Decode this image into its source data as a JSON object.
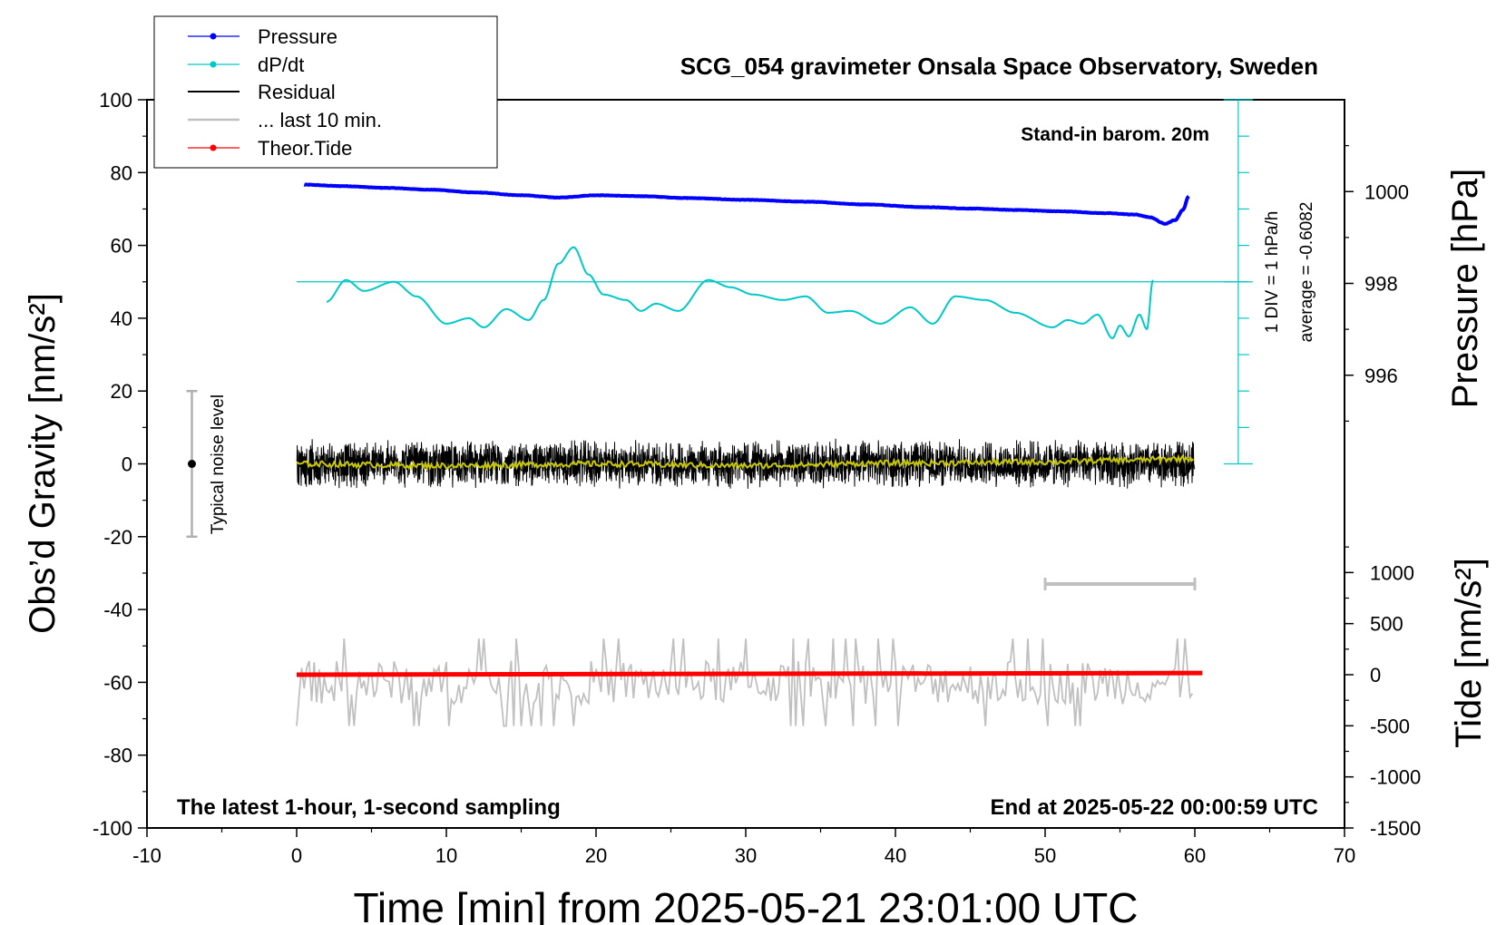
{
  "chart_data": {
    "type": "line",
    "title": "SCG_054 gravimeter Onsala Space Observatory, Sweden",
    "xlabel": "Time [min] from 2025-05-21 23:01:00 UTC",
    "ylabel_left": "Obs’d Gravity [nm/s²]",
    "ylabel_right_top": "Pressure [hPa]",
    "ylabel_right_bottom": "Tide [nm/s²]",
    "xlim": [
      -10,
      70
    ],
    "ylim": [
      -100,
      100
    ],
    "pressure_ylim": [
      994,
      1002
    ],
    "tide_ylim": [
      -1500,
      1500
    ],
    "x_ticks": [
      "-10",
      "0",
      "10",
      "20",
      "30",
      "40",
      "50",
      "60",
      "70"
    ],
    "y_ticks_left": [
      "-100",
      "-80",
      "-60",
      "-40",
      "-20",
      "0",
      "20",
      "40",
      "60",
      "80",
      "100"
    ],
    "pressure_ticks": [
      "996",
      "998",
      "1000"
    ],
    "tide_ticks": [
      "-1500",
      "-1000",
      "-500",
      "0",
      "500",
      "1000"
    ],
    "legend_position": "top-left",
    "legend": [
      {
        "label": "Pressure",
        "color": "#0000ff",
        "marker": "dot"
      },
      {
        "label": "dP/dt",
        "color": "#00c8c8",
        "marker": "dot"
      },
      {
        "label": "Residual",
        "color": "#000000",
        "marker": "none"
      },
      {
        "label": "... last 10 min.",
        "color": "#c0c0c0",
        "marker": "none"
      },
      {
        "label": "Theor.Tide",
        "color": "#ff0000",
        "marker": "dot"
      }
    ],
    "annotations": {
      "stand_in": "Stand-in barom. 20m",
      "div_scale": "1 DIV = 1 hPa/h",
      "average": "average = -0.6082",
      "noise": "Typical noise level",
      "bottom_left": "The latest 1-hour, 1-second sampling",
      "bottom_right": "End at 2025-05-22 00:00:59 UTC"
    },
    "series": [
      {
        "name": "Pressure",
        "color": "#0000ff",
        "axis": "pressure",
        "x": [
          0.5,
          3,
          6,
          9,
          12,
          15,
          17.5,
          20,
          23,
          26,
          30,
          34,
          38,
          42,
          45,
          48,
          51,
          54,
          56,
          57,
          58,
          58.7,
          59.2,
          59.6
        ],
        "y": [
          1000.15,
          1000.12,
          1000.08,
          1000.04,
          999.98,
          999.92,
          999.87,
          999.92,
          999.9,
          999.86,
          999.82,
          999.78,
          999.72,
          999.66,
          999.63,
          999.6,
          999.57,
          999.53,
          999.5,
          999.44,
          999.3,
          999.38,
          999.6,
          999.9
        ]
      },
      {
        "name": "dP/dt",
        "color": "#00c8c8",
        "axis": "gravity_panel",
        "x": [
          2,
          3.3,
          4.5,
          6.5,
          8,
          10,
          11.5,
          12.5,
          14,
          15.5,
          16.5,
          17.5,
          18.5,
          19.5,
          20.5,
          22,
          23,
          24,
          25.5,
          27.5,
          29,
          30.5,
          32.5,
          34,
          35.5,
          37,
          39,
          41,
          42.5,
          44,
          46,
          48,
          50.5,
          51.5,
          52.5,
          53.5,
          54.5,
          55,
          55.6,
          56.3,
          56.8,
          57.2
        ],
        "y": [
          44.5,
          50.5,
          47.5,
          50,
          46,
          38.5,
          40,
          37.5,
          42.5,
          39.5,
          45,
          55,
          59.5,
          52,
          46.5,
          45,
          42,
          44,
          42,
          50.5,
          48.5,
          46.5,
          45,
          46,
          41.5,
          42,
          38.5,
          43,
          38.5,
          46,
          45,
          41.5,
          37.5,
          39.5,
          38.5,
          41,
          34.5,
          38,
          35,
          41,
          37,
          50.5
        ]
      },
      {
        "name": "Residual",
        "color": "#000000",
        "axis": "gravity",
        "x_range": [
          0,
          60
        ],
        "mean": 0,
        "amplitude": 5,
        "extremes": [
          -13,
          15
        ]
      },
      {
        "name": "Residual (smoothed)",
        "color": "#c8c800",
        "axis": "gravity",
        "x": [
          0,
          10,
          20,
          30,
          40,
          50,
          55,
          60
        ],
        "y": [
          0,
          -0.5,
          0,
          -0.5,
          0.2,
          0.5,
          1.0,
          1.5
        ]
      },
      {
        "name": "... last 10 min.",
        "color": "#c0c0c0",
        "axis": "gravity",
        "x_range": [
          0,
          60
        ],
        "mean": -60,
        "amplitude": 6,
        "extremes": [
          -76,
          -48
        ]
      },
      {
        "name": "Theor.Tide",
        "color": "#ff0000",
        "axis": "tide",
        "x": [
          0,
          60.5
        ],
        "y": [
          0,
          17
        ]
      }
    ],
    "dpdt_reference_line": {
      "y": 50,
      "color": "#00c8c8"
    },
    "noise_bar": {
      "x": -7,
      "y": 0,
      "range": [
        -20,
        20
      ]
    },
    "last10_bar": {
      "x": [
        50,
        60
      ],
      "y": -33
    }
  }
}
